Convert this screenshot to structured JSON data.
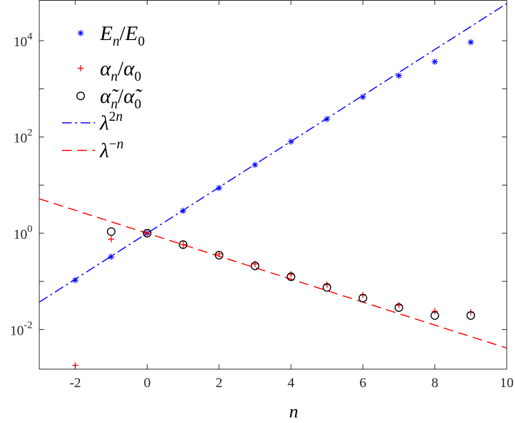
{
  "chart_data": {
    "type": "scatter",
    "xlabel": "n",
    "ylabel": "",
    "title": "",
    "xlim": [
      -3,
      10
    ],
    "ylim": [
      0.0015,
      70000
    ],
    "yscale": "log",
    "grid": false,
    "legend_position": "top-left",
    "x_ticks": [
      -2,
      0,
      2,
      4,
      6,
      8,
      10
    ],
    "x_tick_labels": [
      "-2",
      "0",
      "2",
      "4",
      "6",
      "8",
      "10"
    ],
    "y_ticks": [
      0.01,
      1,
      100,
      10000
    ],
    "y_tick_labels": [
      {
        "base": "10",
        "exp": "-2"
      },
      {
        "base": "10",
        "exp": "0"
      },
      {
        "base": "10",
        "exp": "2"
      },
      {
        "base": "10",
        "exp": "4"
      }
    ],
    "series": [
      {
        "name": "E_n/E_0",
        "label_html": "<tspan font-style='italic'>E</tspan><tspan font-style='italic' font-size='20' dy='8'>n</tspan><tspan dy='-8'>/</tspan><tspan font-style='italic'>E</tspan><tspan font-size='20' dy='8'>0</tspan>",
        "marker": "asterisk",
        "color": "#0000ff",
        "x": [
          -2,
          -1,
          0,
          1,
          2,
          3,
          4,
          5,
          6,
          7,
          8,
          9
        ],
        "y": [
          0.106,
          0.325,
          1.0,
          2.92,
          8.7,
          26.3,
          80,
          235,
          680,
          1880,
          3650,
          9300
        ]
      },
      {
        "name": "α_n/α_0",
        "label_html": "<tspan font-style='italic'>α</tspan><tspan font-style='italic' font-size='20' dy='8'>n</tspan><tspan dy='-8'>/</tspan><tspan font-style='italic'>α</tspan><tspan font-size='20' dy='8'>0</tspan>",
        "marker": "plus",
        "color": "#ff0000",
        "x": [
          -2,
          -1,
          0,
          1,
          2,
          3,
          4,
          5,
          6,
          7,
          8,
          9
        ],
        "y": [
          0.0018,
          0.75,
          1.0,
          0.58,
          0.37,
          0.23,
          0.14,
          0.085,
          0.052,
          0.032,
          0.024,
          0.023
        ]
      },
      {
        "name": "α̃_n/α̃_0",
        "label_html": "<tspan font-style='italic'>α̃</tspan><tspan font-style='italic' font-size='20' dy='8'>n</tspan><tspan dy='-8'>/</tspan><tspan font-style='italic'>α̃</tspan><tspan font-size='20' dy='8'>0</tspan>",
        "marker": "circle",
        "color": "#000000",
        "x": [
          -1,
          0,
          1,
          2,
          3,
          4,
          5,
          6,
          7,
          8,
          9
        ],
        "y": [
          1.08,
          1.0,
          0.58,
          0.35,
          0.21,
          0.125,
          0.075,
          0.045,
          0.0285,
          0.0195,
          0.0195
        ]
      },
      {
        "name": "λ^{2n}",
        "label_html": "<tspan font-style='italic'>λ</tspan><tspan font-size='20' dy='-13'>2</tspan><tspan font-style='italic' font-size='20'>n</tspan>",
        "line": "dashdot",
        "color": "#0000ff",
        "base": 1.7318,
        "exponent_factor": 2
      },
      {
        "name": "λ^{-n}",
        "label_html": "<tspan font-style='italic'>λ</tspan><tspan font-size='20' dy='-13'>−</tspan><tspan font-style='italic' font-size='20'>n</tspan>",
        "line": "dashed",
        "color": "#ff0000",
        "base": 1.7318,
        "exponent_factor": -1
      }
    ]
  }
}
